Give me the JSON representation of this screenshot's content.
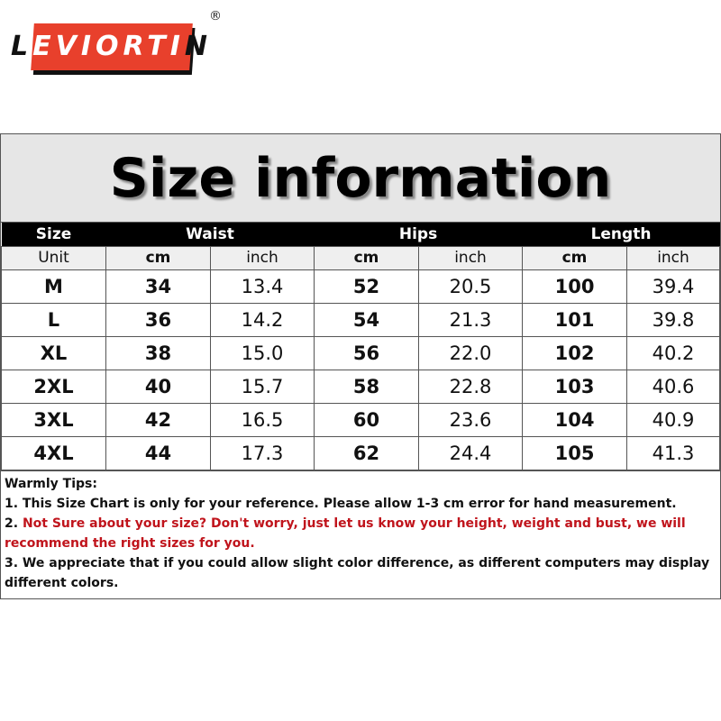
{
  "logo": {
    "text": "LEVIORTIN",
    "registered": "®",
    "colors": {
      "red": "#e8402c"
    }
  },
  "title": "Size information",
  "header": {
    "size": "Size",
    "waist": "Waist",
    "hips": "Hips",
    "length": "Length"
  },
  "units": [
    "Unit",
    "cm",
    "inch",
    "cm",
    "inch",
    "cm",
    "inch"
  ],
  "rows": [
    [
      "M",
      "34",
      "13.4",
      "52",
      "20.5",
      "100",
      "39.4"
    ],
    [
      "L",
      "36",
      "14.2",
      "54",
      "21.3",
      "101",
      "39.8"
    ],
    [
      "XL",
      "38",
      "15.0",
      "56",
      "22.0",
      "102",
      "40.2"
    ],
    [
      "2XL",
      "40",
      "15.7",
      "58",
      "22.8",
      "103",
      "40.6"
    ],
    [
      "3XL",
      "42",
      "16.5",
      "60",
      "23.6",
      "104",
      "40.9"
    ],
    [
      "4XL",
      "44",
      "17.3",
      "62",
      "24.4",
      "105",
      "41.3"
    ]
  ],
  "tips": {
    "heading": "Warmly Tips:",
    "tip1": "1. This Size Chart is only for your reference. Please allow 1-3 cm error for hand measurement.",
    "tip2_num": "2. ",
    "tip2": "Not Sure about your size? Don't worry, just let us know your height, weight and bust, we will recommend the right sizes for you.",
    "tip3": "3. We appreciate that if you could allow slight color difference, as different computers may display different colors."
  }
}
